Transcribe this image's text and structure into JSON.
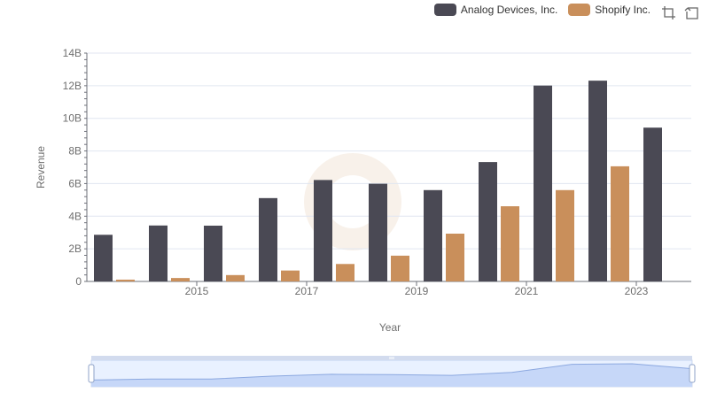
{
  "chart_data": {
    "type": "bar",
    "title": "",
    "xlabel": "Year",
    "ylabel": "Revenue",
    "categories": [
      "2014",
      "2015",
      "2016",
      "2017",
      "2018",
      "2019",
      "2020",
      "2021",
      "2022",
      "2023",
      "2024"
    ],
    "x_tick_labels": [
      "2015",
      "2017",
      "2019",
      "2021",
      "2023"
    ],
    "y_ticks": [
      "0",
      "2B",
      "4B",
      "6B",
      "8B",
      "10B",
      "12B",
      "14B"
    ],
    "ylim": [
      0,
      14
    ],
    "y_unit": "B",
    "series": [
      {
        "name": "Analog Devices, Inc.",
        "color": "#4a4954",
        "values": [
          2.86,
          3.43,
          3.42,
          5.11,
          6.22,
          5.99,
          5.6,
          7.32,
          12.01,
          12.31,
          9.43
        ]
      },
      {
        "name": "Shopify Inc.",
        "color": "#c98f5b",
        "values": [
          0.11,
          0.21,
          0.39,
          0.67,
          1.07,
          1.58,
          2.93,
          4.61,
          5.6,
          7.06,
          null
        ]
      }
    ],
    "legend_position": "top-right",
    "grid": true
  },
  "legend": {
    "items": [
      {
        "label": "Analog Devices, Inc.",
        "color": "#4a4954"
      },
      {
        "label": "Shopify Inc.",
        "color": "#c98f5b"
      }
    ]
  },
  "toolbox": {
    "zoom_icon": "zoom-icon",
    "restore_icon": "restore-icon"
  },
  "data_zoom": {
    "range_start_percent": 0,
    "range_end_percent": 100,
    "fill_color": "#d5e0f7",
    "line_color": "#8ea7d9"
  }
}
